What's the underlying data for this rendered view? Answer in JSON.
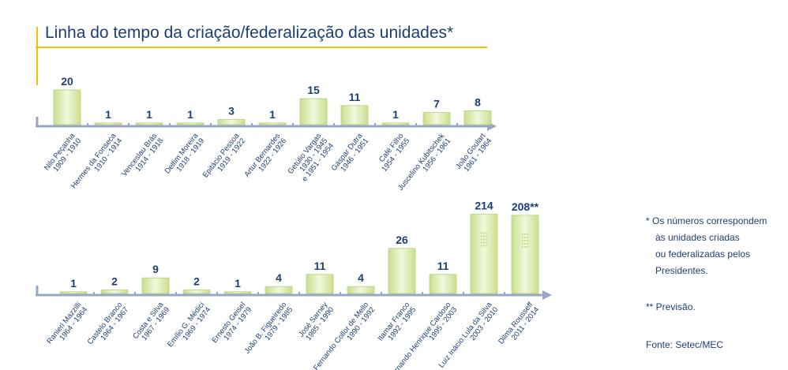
{
  "title": "Linha do tempo da criação/federalização das unidades*",
  "notes": [
    "* Os números correspondem",
    "às unidades criadas",
    "ou federalizadas pelos",
    "Presidentes.",
    "** Previsão.",
    "Fonte: Setec/MEC"
  ],
  "chart_data": [
    {
      "type": "bar",
      "color": "#d9eab0",
      "categories": [
        [
          "Nilo Peçanha",
          "1909 - 1910"
        ],
        [
          "Hermes da Fonseca",
          "1910 - 1914"
        ],
        [
          "Venceslau Brás",
          "1914 - 1918"
        ],
        [
          "Delfim Moreira",
          "1918 - 1919"
        ],
        [
          "Epitácio Pessoa",
          "1919 - 1922"
        ],
        [
          "Artur Bernardes",
          "1922 - 1926"
        ],
        [
          "Getúlio Vargas",
          "1930 - 1945",
          "e 1951 - 1954"
        ],
        [
          "Gaspar Dutra",
          "1946 - 1951"
        ],
        [
          "Café Filho",
          "1954 - 1955"
        ],
        [
          "Juscelino Kubitschek",
          "1956 - 1961"
        ],
        [
          "João Goulart",
          "1961 - 1964"
        ]
      ],
      "values": [
        20,
        1,
        1,
        1,
        3,
        1,
        15,
        11,
        1,
        7,
        8
      ]
    },
    {
      "type": "bar",
      "color": "#d9eab0",
      "categories": [
        [
          "Ranieri Mazzilli",
          "1964 - 1964"
        ],
        [
          "Castelo Branco",
          "1964 - 1967"
        ],
        [
          "Costa e Silva",
          "1967 - 1969"
        ],
        [
          "Emílio G. Médici",
          "1969 - 1974"
        ],
        [
          "Ernesto Geisel",
          "1974 - 1979"
        ],
        [
          "João B. Figueiredo",
          "1979 - 1985"
        ],
        [
          "José Sarney",
          "1985 - 1990"
        ],
        [
          "Fernando Collor de Mello",
          "1990 - 1992"
        ],
        [
          "Itamar Franco",
          "1992 - 1995"
        ],
        [
          "Fernando Henrique Cardoso",
          "1995 - 2003"
        ],
        [
          "Luiz Inácio Lula da Silva",
          "2003 - 2010"
        ],
        [
          "Dilma Rousseff",
          "2011 - 2014"
        ]
      ],
      "values": [
        1,
        2,
        9,
        2,
        1,
        4,
        11,
        4,
        26,
        11,
        214,
        208
      ],
      "value_labels": [
        "1",
        "2",
        "9",
        "2",
        "1",
        "4",
        "11",
        "4",
        "26",
        "11",
        "214",
        "208**"
      ]
    }
  ]
}
